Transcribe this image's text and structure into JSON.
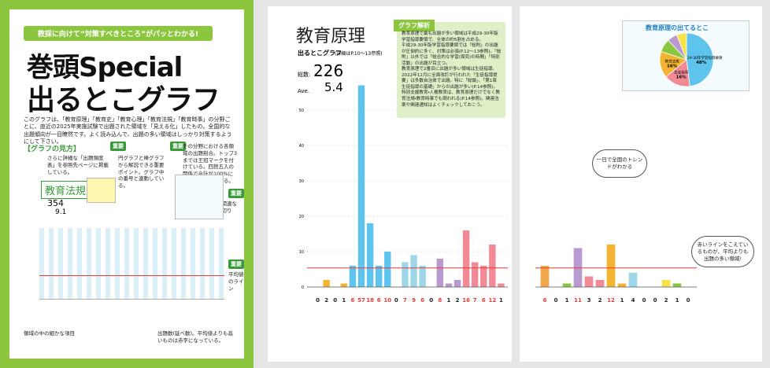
{
  "left": {
    "banner": "教採に向けて“対策すべきところ”がパッとわかる!",
    "title1": "巻頭Special",
    "title2": "出るとこグラフ",
    "intro": "このグラフは、「教育原理」「教育史」「教育心理」「教育法規」「教育時事」の分野ごとに、直近の2025年実施試験で出題された領域を「見える化」したもの。全国的な出題傾向が一目瞭然です。よく読み込んで、出題の多い領域はしっかり対策するようにして下さい。",
    "howto": "【グラフの見方】",
    "tag": "重要",
    "notes": [
      "さらに詳細な「出題頻度表」を参照先ページに掲載している。",
      "円グラフと棒グラフから解説できる重要ポイント。グラフ中の番号と連動している。",
      "その分野における各領域の出題割合。トップ3までは王冠マークを付けている。四捨五入の関係で合計が100%にならない場合もある。",
      "内容の関連などで区切り",
      "平均値のライン",
      "領域の中の細かな項目",
      "出題数(延べ数)。平均値よりも高いものは赤字になっている。"
    ],
    "sample_title": "教育法規",
    "sample_total": "354",
    "sample_ave": "9.1"
  },
  "middle": {
    "title": "教育原理",
    "subtitle": "出るとこグラフ",
    "subtitle_note": "(詳細はP.10〜13参照)",
    "total_label": "総数:",
    "total": 226,
    "ave_label": "Ave.",
    "ave": 5.4,
    "analysis_title": "グラフ解析",
    "analysis": [
      "教育原理で最も出題が多い領域は平成29-30年版学習指導要領で、全体の約5割を占める。",
      "平成29-30年版学習指導要領では「総則」の出題が圧倒的に多く、対策は必須(P.12〜13参照)。「総則」以外では「総合的な学習(探究)の時間」「特別活動」の出題が目立つ。",
      "教育原理で2番目に出題が多い領域は生徒指導。2022年12月に全面改訂が行われた「生徒指導提要」は多数自治体で出題。特に「総論」、「第1章 生徒指導の基礎」からの出題が多い(P.14参照)。",
      "特別支援教育・人権教育は、教育原理だけでなく教育法規・教育時事でも問われる(P.14参照)。関連法案や関連通知はよくチェックしておこう。"
    ]
  },
  "chart": {
    "ylim": [
      0,
      60
    ],
    "yticks": [
      0,
      10,
      20,
      30,
      40,
      50
    ],
    "values": [
      0,
      2,
      0,
      1,
      6,
      57,
      18,
      6,
      10,
      0,
      7,
      9,
      6,
      0,
      8,
      1,
      2,
      16,
      7,
      6,
      12,
      1,
      6,
      0,
      1,
      11,
      3,
      2,
      12,
      1,
      4,
      0,
      0,
      2,
      1,
      0
    ],
    "colors": [
      "#f3b431",
      "#f3b431",
      "#f3b431",
      "#f3b431",
      "#5ec4ee",
      "#5ec4ee",
      "#5ec4ee",
      "#5ec4ee",
      "#5ec4ee",
      "#9fd7ea",
      "#9fd7ea",
      "#9fd7ea",
      "#9fd7ea",
      "#b99ad0",
      "#b99ad0",
      "#b99ad0",
      "#b99ad0",
      "#f28a95",
      "#f28a95",
      "#f28a95",
      "#f28a95",
      "#f28a95",
      "#f3a64a",
      "#f3a64a",
      "#8cc63f",
      "#b99ad0",
      "#f28a95",
      "#f28a95",
      "#f3b431",
      "#f3b431",
      "#9fd7ea",
      "#9fd7ea",
      "#f6e24b",
      "#f6e24b",
      "#8cc63f",
      "#8cc63f"
    ],
    "average_color": "#e83a3a"
  },
  "right": {
    "pie_title": "教育原理の出てるとこ",
    "pie": {
      "labels": [
        "平成29-30年学習指導要領",
        "生徒指導",
        "教育法規",
        null,
        null,
        null
      ],
      "values": [
        48,
        16,
        16,
        8,
        6,
        6
      ],
      "value_labels": [
        "48%",
        "16%",
        "16%",
        null,
        null,
        null
      ],
      "colors": [
        "#5ec4ee",
        "#f28a95",
        "#f3b431",
        "#8cc63f",
        "#b99ad0",
        "#f6e24b"
      ]
    },
    "bubble1": "一日で全国のトレンドがわかる",
    "bubble2": "赤いラインをこえているものが、平均よりも出題の多い領域!"
  }
}
